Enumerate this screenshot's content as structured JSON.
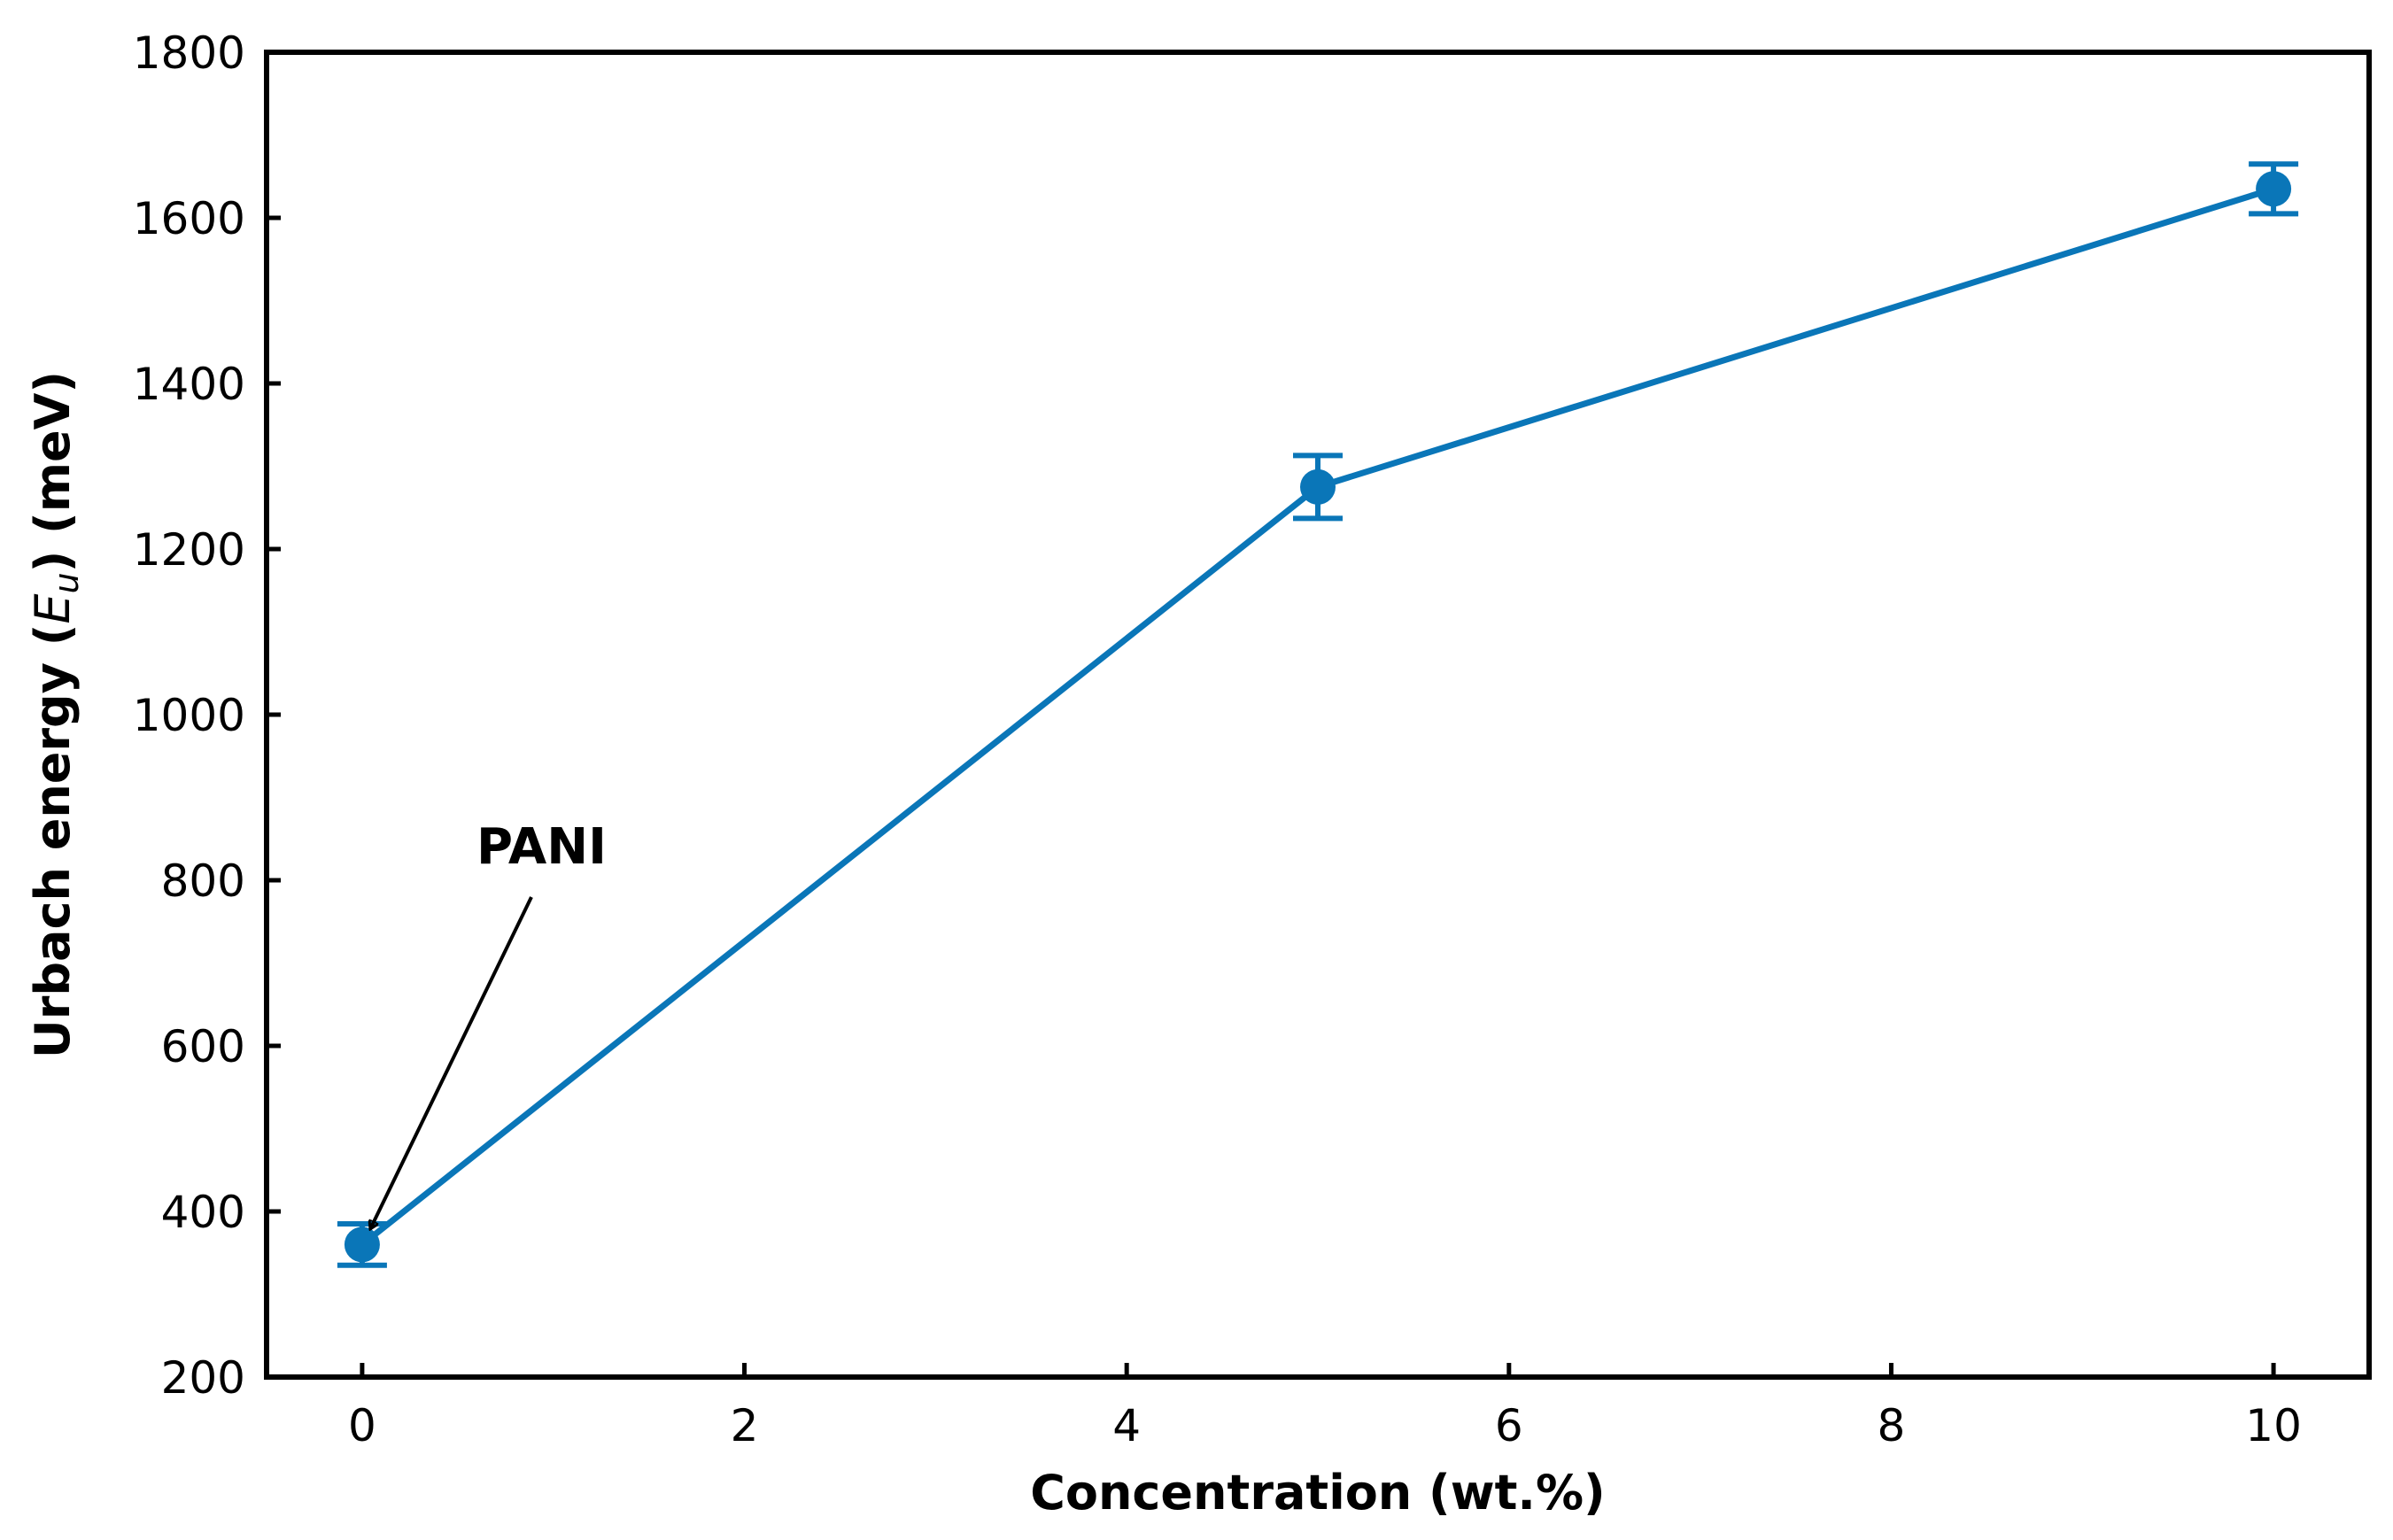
{
  "chart_data": {
    "type": "line",
    "xlabel": "Concentration (wt.%)",
    "ylabel": {
      "prefix": "Urbach energy (",
      "symbol": "E",
      "subscript": "u",
      "suffix": ") (meV)"
    },
    "xlim": [
      -0.5,
      10.5
    ],
    "ylim": [
      200,
      1800
    ],
    "xticks": [
      0,
      2,
      4,
      6,
      8,
      10
    ],
    "yticks": [
      200,
      400,
      600,
      800,
      1000,
      1200,
      1400,
      1600,
      1800
    ],
    "grid": false,
    "color": "#0a76b8",
    "series": [
      {
        "x": [
          0,
          5,
          10
        ],
        "y": [
          360,
          1275,
          1635
        ],
        "yerr": [
          25,
          38,
          30
        ]
      }
    ],
    "annotations": [
      {
        "text": "PANI",
        "x": 0,
        "y": 360
      }
    ]
  }
}
